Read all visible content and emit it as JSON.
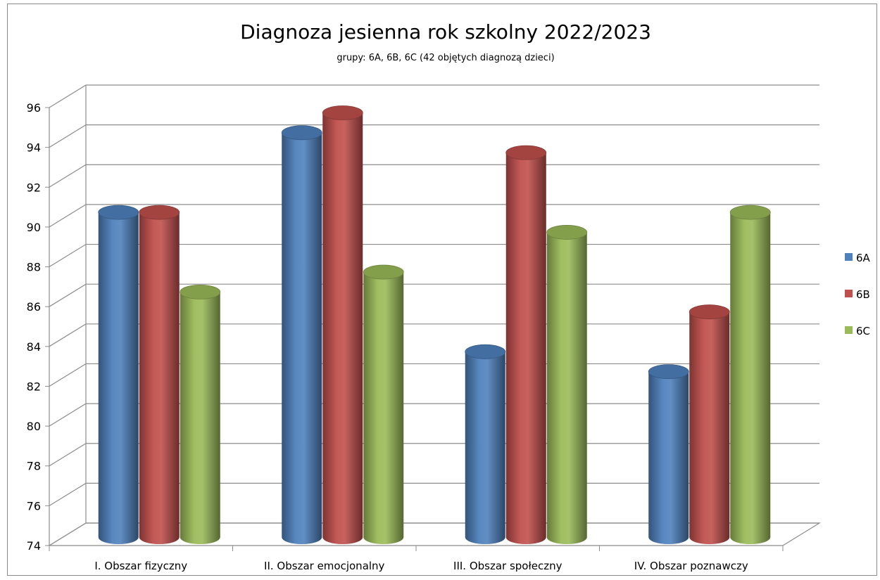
{
  "chart_data": {
    "type": "bar",
    "title": "Diagnoza jesienna rok szkolny 2022/2023",
    "subtitle": "grupy: 6A, 6B, 6C (42 objętych diagnozą dzieci)",
    "categories": [
      "I. Obszar fizyczny",
      "II. Obszar emocjonalny",
      "III. Obszar społeczny",
      "IV. Obszar poznawczy"
    ],
    "series": [
      {
        "name": "6A",
        "values": [
          90,
          94,
          83,
          82
        ],
        "color": "#4f81bd"
      },
      {
        "name": "6B",
        "values": [
          90,
          95,
          93,
          85
        ],
        "color": "#c0504d"
      },
      {
        "name": "6C",
        "values": [
          86,
          87,
          89,
          90
        ],
        "color": "#9bbb59"
      }
    ],
    "ylim": [
      74,
      96
    ],
    "yticks": [
      74,
      76,
      78,
      80,
      82,
      84,
      86,
      88,
      90,
      92,
      94,
      96
    ],
    "grid": true,
    "legend": "right",
    "style": "3d-cylinder"
  }
}
